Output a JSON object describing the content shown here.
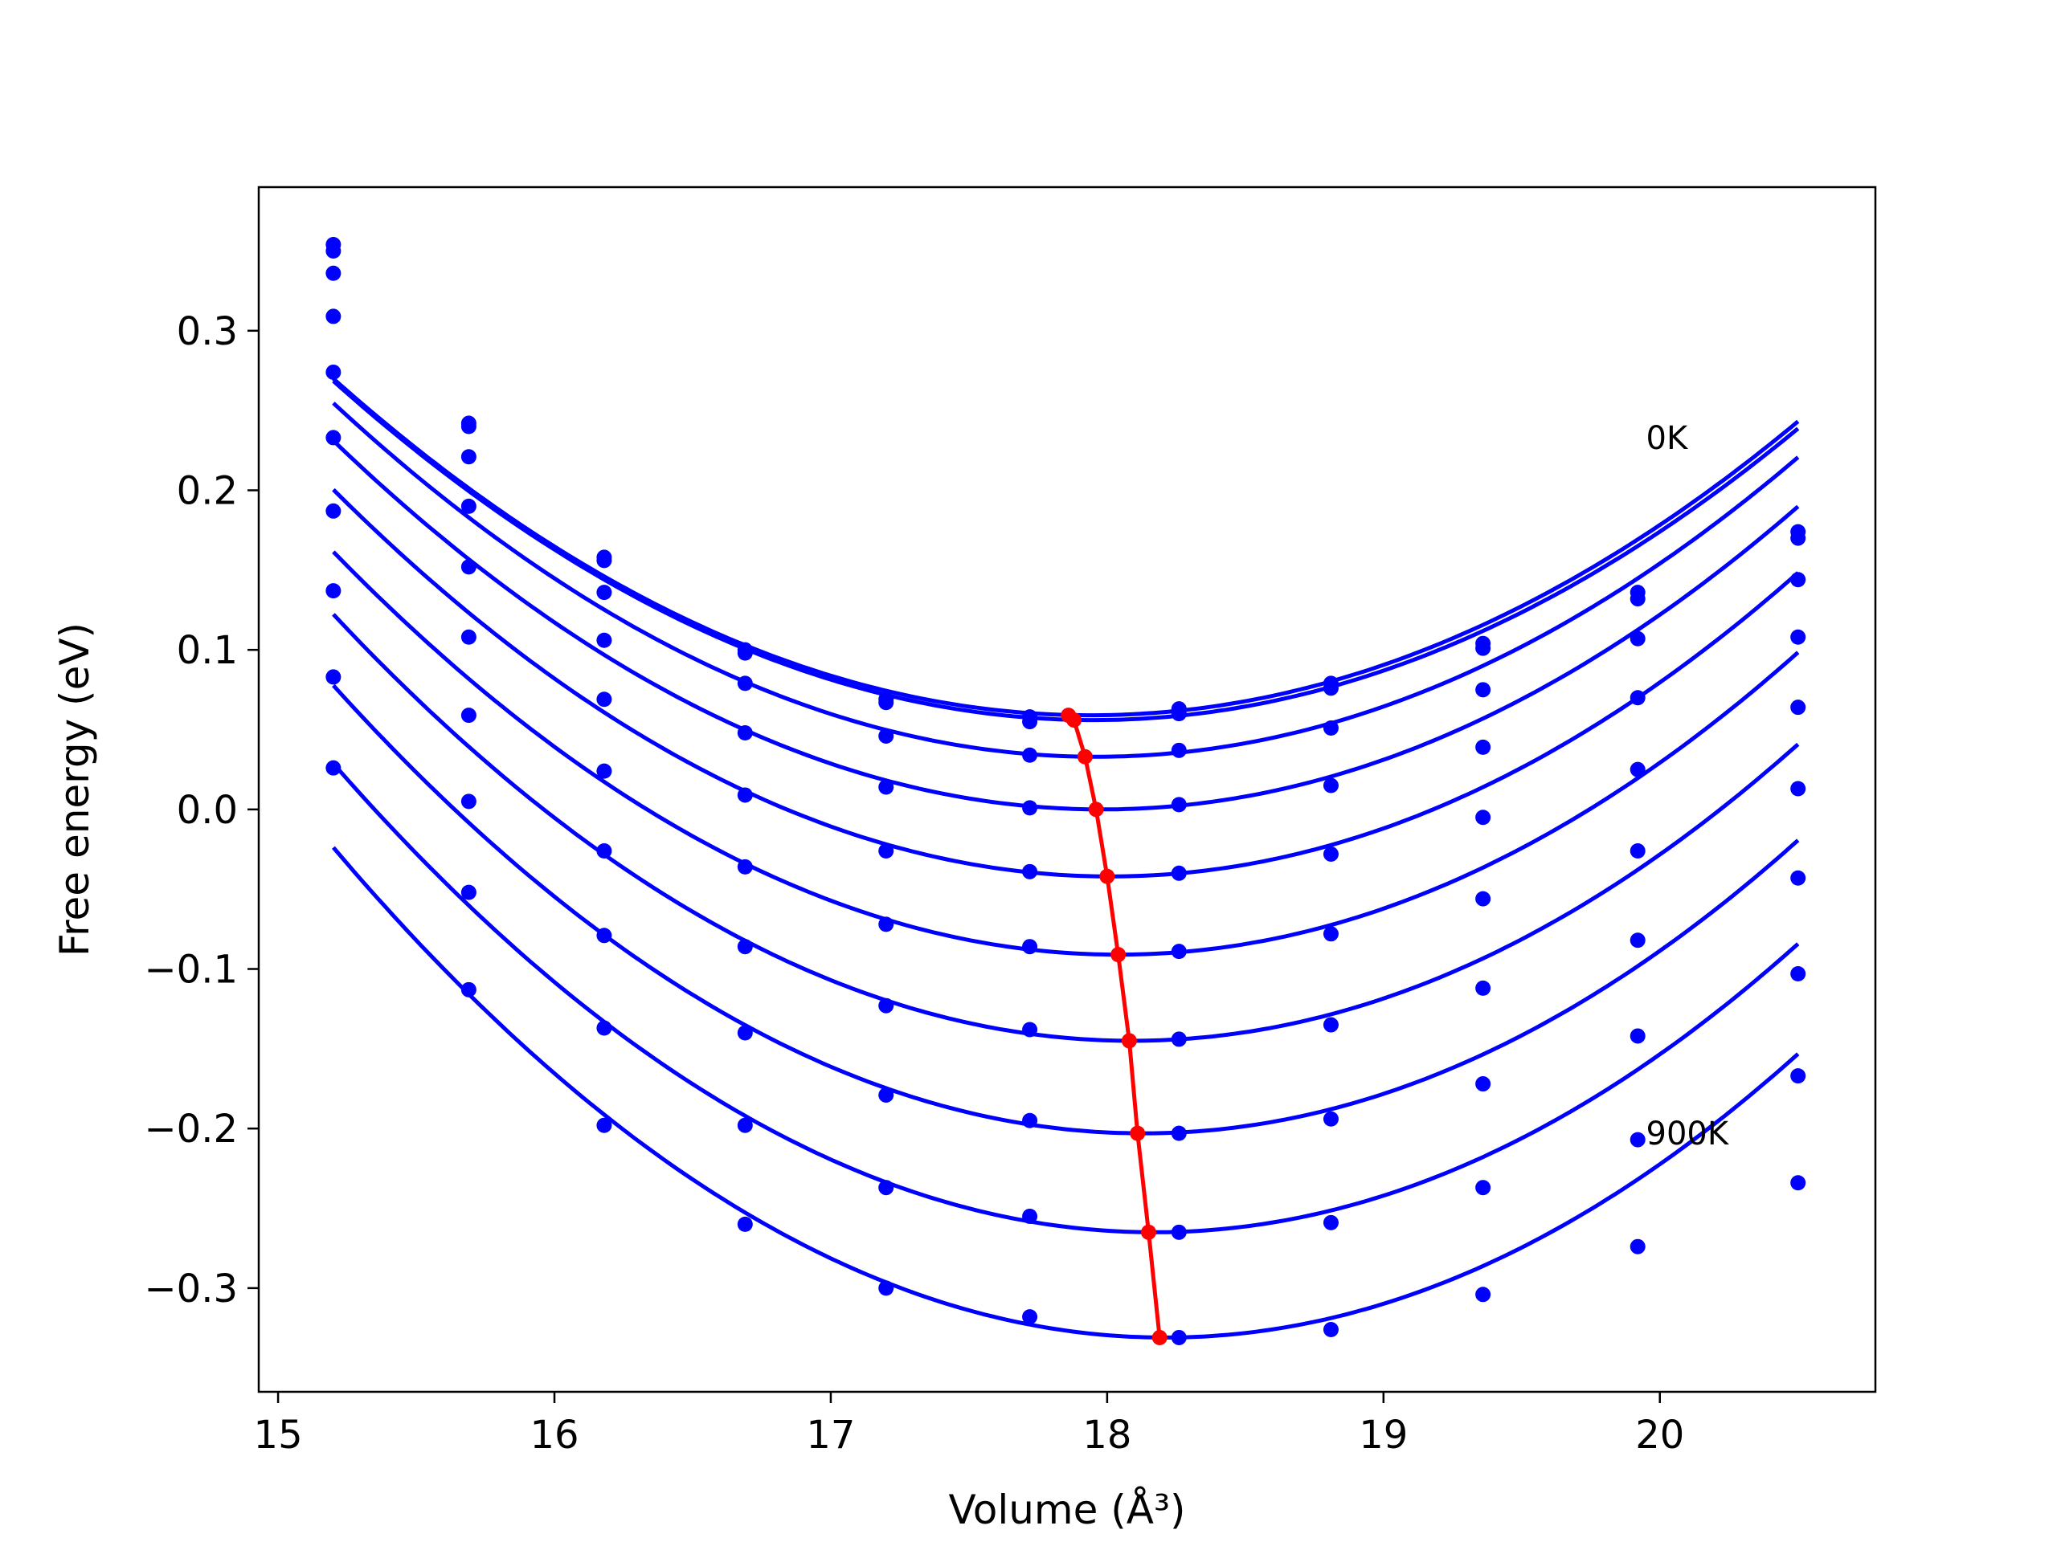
{
  "chart_data": {
    "type": "line",
    "xlabel": "Volume (Å³)",
    "ylabel": "Free energy (eV)",
    "xlim": [
      14.93,
      20.78
    ],
    "ylim": [
      -0.365,
      0.39
    ],
    "xticks": [
      15,
      16,
      17,
      18,
      19,
      20
    ],
    "yticks": [
      -0.3,
      -0.2,
      -0.1,
      0.0,
      0.1,
      0.2,
      0.3
    ],
    "xtick_labels": [
      "15",
      "16",
      "17",
      "18",
      "19",
      "20"
    ],
    "ytick_labels": [
      "−0.3",
      "−0.2",
      "−0.1",
      "0.0",
      "0.1",
      "0.2",
      "0.3"
    ],
    "annotations": [
      {
        "text": "0K",
        "x": 19.95,
        "y": 0.226
      },
      {
        "text": "900K",
        "x": 19.95,
        "y": -0.21
      }
    ],
    "colors": {
      "curves": "#0000ff",
      "minimum_path": "#ff0000",
      "axes": "#000000"
    },
    "volumes": [
      15.2,
      15.69,
      16.18,
      16.69,
      17.2,
      17.72,
      18.26,
      18.81,
      19.36,
      19.92,
      20.5
    ],
    "series": [
      {
        "points": [
          0.354,
          0.242,
          0.158,
          0.1,
          0.069,
          0.058,
          0.063,
          0.079,
          0.104,
          0.136,
          0.174
        ],
        "fit": {
          "a": 0.0281,
          "v0": 17.94,
          "e0": 0.059
        }
      },
      {
        "points": [
          0.35,
          0.24,
          0.156,
          0.098,
          0.067,
          0.055,
          0.06,
          0.076,
          0.101,
          0.132,
          0.17
        ],
        "fit": {
          "a": 0.0281,
          "v0": 17.95,
          "e0": 0.056
        }
      },
      {
        "points": [
          0.336,
          0.221,
          0.136,
          0.079,
          0.046,
          0.034,
          0.037,
          0.051,
          0.075,
          0.107,
          0.144
        ],
        "fit": {
          "a": 0.0291,
          "v0": 17.96,
          "e0": 0.033
        }
      },
      {
        "points": [
          0.309,
          0.19,
          0.106,
          0.048,
          0.014,
          0.001,
          0.003,
          0.015,
          0.039,
          0.07,
          0.108
        ],
        "fit": {
          "a": 0.0299,
          "v0": 17.98,
          "e0": 0.0
        }
      },
      {
        "points": [
          0.274,
          0.152,
          0.069,
          0.009,
          -0.026,
          -0.039,
          -0.04,
          -0.028,
          -0.005,
          0.025,
          0.064
        ],
        "fit": {
          "a": 0.0307,
          "v0": 18.01,
          "e0": -0.042
        }
      },
      {
        "points": [
          0.233,
          0.108,
          0.024,
          -0.036,
          -0.072,
          -0.086,
          -0.089,
          -0.078,
          -0.056,
          -0.026,
          0.013
        ],
        "fit": {
          "a": 0.0313,
          "v0": 18.04,
          "e0": -0.091
        }
      },
      {
        "points": [
          0.187,
          0.059,
          -0.026,
          -0.086,
          -0.123,
          -0.138,
          -0.144,
          -0.135,
          -0.112,
          -0.082,
          -0.043
        ],
        "fit": {
          "a": 0.032,
          "v0": 18.09,
          "e0": -0.145
        }
      },
      {
        "points": [
          0.137,
          0.005,
          -0.079,
          -0.14,
          -0.179,
          -0.195,
          -0.203,
          -0.194,
          -0.172,
          -0.142,
          -0.103
        ],
        "fit": {
          "a": 0.0327,
          "v0": 18.13,
          "e0": -0.203
        }
      },
      {
        "points": [
          0.083,
          -0.052,
          -0.137,
          -0.198,
          -0.237,
          -0.255,
          -0.265,
          -0.259,
          -0.237,
          -0.207,
          -0.167
        ],
        "fit": {
          "a": 0.0333,
          "v0": 18.17,
          "e0": -0.265
        }
      },
      {
        "points": [
          0.026,
          -0.113,
          -0.198,
          -0.26,
          -0.3,
          -0.318,
          -0.331,
          -0.326,
          -0.304,
          -0.274,
          -0.234
        ],
        "fit": {
          "a": 0.0339,
          "v0": 18.21,
          "e0": -0.331
        }
      }
    ],
    "minimum_path": {
      "x": [
        17.86,
        17.88,
        17.92,
        17.96,
        18.0,
        18.04,
        18.08,
        18.11,
        18.15,
        18.19
      ],
      "y": [
        0.059,
        0.056,
        0.033,
        0.0,
        -0.042,
        -0.091,
        -0.145,
        -0.203,
        -0.265,
        -0.331
      ]
    }
  }
}
